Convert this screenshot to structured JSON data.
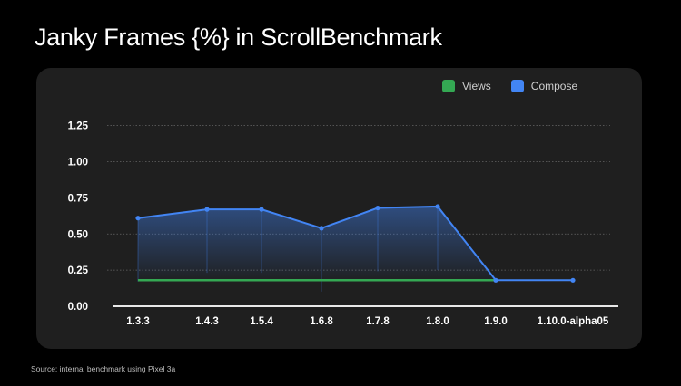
{
  "title": "Janky Frames {%} in ScrollBenchmark",
  "source": "Source: internal benchmark using Pixel 3a",
  "chart_data": {
    "type": "area",
    "title": "Janky Frames {%} in ScrollBenchmark",
    "categories": [
      "1.3.3",
      "1.4.3",
      "1.5.4",
      "1.6.8",
      "1.7.8",
      "1.8.0",
      "1.9.0",
      "1.10.0-alpha05"
    ],
    "yticks": [
      "0.00",
      "0.25",
      "0.50",
      "0.75",
      "1.00",
      "1.25"
    ],
    "ylim": [
      0,
      1.25
    ],
    "grid": true,
    "legend_position": "top-right",
    "series": [
      {
        "name": "Views",
        "color": "#34a853",
        "values": [
          0.18,
          0.18,
          0.18,
          0.18,
          0.18,
          0.18,
          0.18,
          null
        ]
      },
      {
        "name": "Compose",
        "color": "#4285f4",
        "values": [
          0.61,
          0.67,
          0.67,
          0.54,
          0.68,
          0.69,
          0.18,
          0.18
        ]
      }
    ]
  }
}
